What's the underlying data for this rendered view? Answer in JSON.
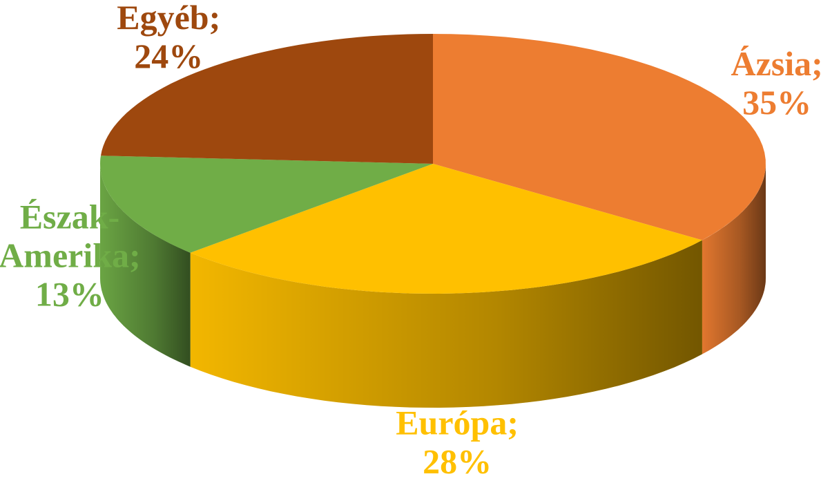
{
  "chart_data": {
    "type": "pie3d",
    "categories": [
      "Ázsia",
      "Európa",
      "Észak-Amerika",
      "Egyéb"
    ],
    "values": [
      35,
      28,
      13,
      24
    ],
    "value_labels": [
      "35%",
      "28%",
      "13%",
      "24%"
    ],
    "label_separator": ";",
    "colors": [
      "#ED7D31",
      "#FFC000",
      "#70AD47",
      "#9E480E"
    ]
  }
}
